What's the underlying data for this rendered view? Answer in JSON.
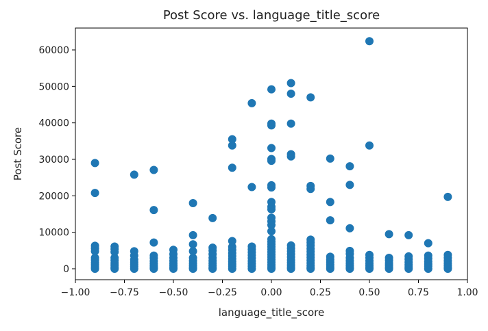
{
  "chart_data": {
    "type": "scatter",
    "title": "Post Score vs. language_title_score",
    "xlabel": "language_title_score",
    "ylabel": "Post Score",
    "xlim": [
      -1.0,
      1.0
    ],
    "ylim": [
      -3000,
      66000
    ],
    "xticks": [
      -1.0,
      -0.75,
      -0.5,
      -0.25,
      0.0,
      0.25,
      0.5,
      0.75,
      1.0
    ],
    "xtick_labels": [
      "−1.00",
      "−0.75",
      "−0.50",
      "−0.25",
      "0.00",
      "0.25",
      "0.50",
      "0.75",
      "1.00"
    ],
    "yticks": [
      0,
      10000,
      20000,
      30000,
      40000,
      50000,
      60000
    ],
    "ytick_labels": [
      "0",
      "10000",
      "20000",
      "30000",
      "40000",
      "50000",
      "60000"
    ],
    "grid": false,
    "legend": false,
    "marker_color": "#1f77b4",
    "series": [
      {
        "points": [
          {
            "x": -0.9,
            "y": 29000
          },
          {
            "x": -0.9,
            "y": 20800
          },
          {
            "x": -0.9,
            "y": 6300
          },
          {
            "x": -0.9,
            "y": 5600
          },
          {
            "x": -0.9,
            "y": 4800
          },
          {
            "x": -0.9,
            "y": 3000
          },
          {
            "x": -0.9,
            "y": 2400
          },
          {
            "x": -0.9,
            "y": 1700
          },
          {
            "x": -0.9,
            "y": 1100
          },
          {
            "x": -0.9,
            "y": 500
          },
          {
            "x": -0.9,
            "y": 0
          },
          {
            "x": -0.8,
            "y": 6100
          },
          {
            "x": -0.8,
            "y": 5400
          },
          {
            "x": -0.8,
            "y": 4600
          },
          {
            "x": -0.8,
            "y": 3000
          },
          {
            "x": -0.8,
            "y": 2300
          },
          {
            "x": -0.8,
            "y": 1600
          },
          {
            "x": -0.8,
            "y": 1000
          },
          {
            "x": -0.8,
            "y": 400
          },
          {
            "x": -0.8,
            "y": 0
          },
          {
            "x": -0.7,
            "y": 25800
          },
          {
            "x": -0.7,
            "y": 4800
          },
          {
            "x": -0.7,
            "y": 3600
          },
          {
            "x": -0.7,
            "y": 2500
          },
          {
            "x": -0.7,
            "y": 1800
          },
          {
            "x": -0.7,
            "y": 1200
          },
          {
            "x": -0.7,
            "y": 600
          },
          {
            "x": -0.7,
            "y": 0
          },
          {
            "x": -0.6,
            "y": 27100
          },
          {
            "x": -0.6,
            "y": 16100
          },
          {
            "x": -0.6,
            "y": 7200
          },
          {
            "x": -0.6,
            "y": 3600
          },
          {
            "x": -0.6,
            "y": 2900
          },
          {
            "x": -0.6,
            "y": 2100
          },
          {
            "x": -0.6,
            "y": 1400
          },
          {
            "x": -0.6,
            "y": 800
          },
          {
            "x": -0.6,
            "y": 300
          },
          {
            "x": -0.6,
            "y": 0
          },
          {
            "x": -0.5,
            "y": 5200
          },
          {
            "x": -0.5,
            "y": 4000
          },
          {
            "x": -0.5,
            "y": 3000
          },
          {
            "x": -0.5,
            "y": 2200
          },
          {
            "x": -0.5,
            "y": 1500
          },
          {
            "x": -0.5,
            "y": 900
          },
          {
            "x": -0.5,
            "y": 300
          },
          {
            "x": -0.5,
            "y": 0
          },
          {
            "x": -0.4,
            "y": 18000
          },
          {
            "x": -0.4,
            "y": 9200
          },
          {
            "x": -0.4,
            "y": 6700
          },
          {
            "x": -0.4,
            "y": 4800
          },
          {
            "x": -0.4,
            "y": 3000
          },
          {
            "x": -0.4,
            "y": 2200
          },
          {
            "x": -0.4,
            "y": 1500
          },
          {
            "x": -0.4,
            "y": 900
          },
          {
            "x": -0.4,
            "y": 300
          },
          {
            "x": -0.4,
            "y": 0
          },
          {
            "x": -0.3,
            "y": 13900
          },
          {
            "x": -0.3,
            "y": 5800
          },
          {
            "x": -0.3,
            "y": 5000
          },
          {
            "x": -0.3,
            "y": 4000
          },
          {
            "x": -0.3,
            "y": 3000
          },
          {
            "x": -0.3,
            "y": 2200
          },
          {
            "x": -0.3,
            "y": 1500
          },
          {
            "x": -0.3,
            "y": 900
          },
          {
            "x": -0.3,
            "y": 300
          },
          {
            "x": -0.3,
            "y": 0
          },
          {
            "x": -0.2,
            "y": 35500
          },
          {
            "x": -0.2,
            "y": 33800
          },
          {
            "x": -0.2,
            "y": 27700
          },
          {
            "x": -0.2,
            "y": 7600
          },
          {
            "x": -0.2,
            "y": 6000
          },
          {
            "x": -0.2,
            "y": 5200
          },
          {
            "x": -0.2,
            "y": 4300
          },
          {
            "x": -0.2,
            "y": 3500
          },
          {
            "x": -0.2,
            "y": 2700
          },
          {
            "x": -0.2,
            "y": 2000
          },
          {
            "x": -0.2,
            "y": 1300
          },
          {
            "x": -0.2,
            "y": 700
          },
          {
            "x": -0.2,
            "y": 0
          },
          {
            "x": -0.1,
            "y": 45400
          },
          {
            "x": -0.1,
            "y": 22400
          },
          {
            "x": -0.1,
            "y": 6100
          },
          {
            "x": -0.1,
            "y": 5300
          },
          {
            "x": -0.1,
            "y": 4500
          },
          {
            "x": -0.1,
            "y": 3700
          },
          {
            "x": -0.1,
            "y": 2900
          },
          {
            "x": -0.1,
            "y": 2100
          },
          {
            "x": -0.1,
            "y": 1400
          },
          {
            "x": -0.1,
            "y": 700
          },
          {
            "x": -0.1,
            "y": 0
          },
          {
            "x": 0.0,
            "y": 49200
          },
          {
            "x": 0.0,
            "y": 39800
          },
          {
            "x": 0.0,
            "y": 39300
          },
          {
            "x": 0.0,
            "y": 33100
          },
          {
            "x": 0.0,
            "y": 30100
          },
          {
            "x": 0.0,
            "y": 29600
          },
          {
            "x": 0.0,
            "y": 22900
          },
          {
            "x": 0.0,
            "y": 22300
          },
          {
            "x": 0.0,
            "y": 18300
          },
          {
            "x": 0.0,
            "y": 17000
          },
          {
            "x": 0.0,
            "y": 16300
          },
          {
            "x": 0.0,
            "y": 14000
          },
          {
            "x": 0.0,
            "y": 13000
          },
          {
            "x": 0.0,
            "y": 12000
          },
          {
            "x": 0.0,
            "y": 10300
          },
          {
            "x": 0.0,
            "y": 8100
          },
          {
            "x": 0.0,
            "y": 7400
          },
          {
            "x": 0.0,
            "y": 6700
          },
          {
            "x": 0.0,
            "y": 6000
          },
          {
            "x": 0.0,
            "y": 5300
          },
          {
            "x": 0.0,
            "y": 4600
          },
          {
            "x": 0.0,
            "y": 3900
          },
          {
            "x": 0.0,
            "y": 3200
          },
          {
            "x": 0.0,
            "y": 2500
          },
          {
            "x": 0.0,
            "y": 1800
          },
          {
            "x": 0.0,
            "y": 1100
          },
          {
            "x": 0.0,
            "y": 500
          },
          {
            "x": 0.0,
            "y": 0
          },
          {
            "x": 0.1,
            "y": 50900
          },
          {
            "x": 0.1,
            "y": 48000
          },
          {
            "x": 0.1,
            "y": 39800
          },
          {
            "x": 0.1,
            "y": 31400
          },
          {
            "x": 0.1,
            "y": 30800
          },
          {
            "x": 0.1,
            "y": 6400
          },
          {
            "x": 0.1,
            "y": 5600
          },
          {
            "x": 0.1,
            "y": 4800
          },
          {
            "x": 0.1,
            "y": 4000
          },
          {
            "x": 0.1,
            "y": 3200
          },
          {
            "x": 0.1,
            "y": 2400
          },
          {
            "x": 0.1,
            "y": 1700
          },
          {
            "x": 0.1,
            "y": 1000
          },
          {
            "x": 0.1,
            "y": 400
          },
          {
            "x": 0.1,
            "y": 0
          },
          {
            "x": 0.2,
            "y": 47000
          },
          {
            "x": 0.2,
            "y": 22700
          },
          {
            "x": 0.2,
            "y": 21900
          },
          {
            "x": 0.2,
            "y": 8000
          },
          {
            "x": 0.2,
            "y": 7200
          },
          {
            "x": 0.2,
            "y": 6400
          },
          {
            "x": 0.2,
            "y": 5500
          },
          {
            "x": 0.2,
            "y": 4700
          },
          {
            "x": 0.2,
            "y": 3900
          },
          {
            "x": 0.2,
            "y": 3100
          },
          {
            "x": 0.2,
            "y": 2300
          },
          {
            "x": 0.2,
            "y": 1600
          },
          {
            "x": 0.2,
            "y": 900
          },
          {
            "x": 0.2,
            "y": 300
          },
          {
            "x": 0.2,
            "y": 0
          },
          {
            "x": 0.3,
            "y": 30200
          },
          {
            "x": 0.3,
            "y": 18300
          },
          {
            "x": 0.3,
            "y": 13300
          },
          {
            "x": 0.3,
            "y": 3300
          },
          {
            "x": 0.3,
            "y": 2500
          },
          {
            "x": 0.3,
            "y": 1800
          },
          {
            "x": 0.3,
            "y": 1100
          },
          {
            "x": 0.3,
            "y": 500
          },
          {
            "x": 0.3,
            "y": 0
          },
          {
            "x": 0.4,
            "y": 28100
          },
          {
            "x": 0.4,
            "y": 23000
          },
          {
            "x": 0.4,
            "y": 11100
          },
          {
            "x": 0.4,
            "y": 4900
          },
          {
            "x": 0.4,
            "y": 4100
          },
          {
            "x": 0.4,
            "y": 3000
          },
          {
            "x": 0.4,
            "y": 2200
          },
          {
            "x": 0.4,
            "y": 1500
          },
          {
            "x": 0.4,
            "y": 900
          },
          {
            "x": 0.4,
            "y": 300
          },
          {
            "x": 0.4,
            "y": 0
          },
          {
            "x": 0.5,
            "y": 62400
          },
          {
            "x": 0.5,
            "y": 33800
          },
          {
            "x": 0.5,
            "y": 3800
          },
          {
            "x": 0.5,
            "y": 3000
          },
          {
            "x": 0.5,
            "y": 2200
          },
          {
            "x": 0.5,
            "y": 1500
          },
          {
            "x": 0.5,
            "y": 900
          },
          {
            "x": 0.5,
            "y": 300
          },
          {
            "x": 0.5,
            "y": 0
          },
          {
            "x": 0.6,
            "y": 9500
          },
          {
            "x": 0.6,
            "y": 3000
          },
          {
            "x": 0.6,
            "y": 2300
          },
          {
            "x": 0.6,
            "y": 1600
          },
          {
            "x": 0.6,
            "y": 1000
          },
          {
            "x": 0.6,
            "y": 400
          },
          {
            "x": 0.6,
            "y": 0
          },
          {
            "x": 0.7,
            "y": 9200
          },
          {
            "x": 0.7,
            "y": 3400
          },
          {
            "x": 0.7,
            "y": 2600
          },
          {
            "x": 0.7,
            "y": 1800
          },
          {
            "x": 0.7,
            "y": 1100
          },
          {
            "x": 0.7,
            "y": 500
          },
          {
            "x": 0.7,
            "y": 0
          },
          {
            "x": 0.8,
            "y": 7000
          },
          {
            "x": 0.8,
            "y": 3600
          },
          {
            "x": 0.8,
            "y": 2800
          },
          {
            "x": 0.8,
            "y": 2000
          },
          {
            "x": 0.8,
            "y": 1300
          },
          {
            "x": 0.8,
            "y": 700
          },
          {
            "x": 0.8,
            "y": 0
          },
          {
            "x": 0.9,
            "y": 19700
          },
          {
            "x": 0.9,
            "y": 3800
          },
          {
            "x": 0.9,
            "y": 3000
          },
          {
            "x": 0.9,
            "y": 2200
          },
          {
            "x": 0.9,
            "y": 1500
          },
          {
            "x": 0.9,
            "y": 900
          },
          {
            "x": 0.9,
            "y": 300
          },
          {
            "x": 0.9,
            "y": 0
          }
        ]
      }
    ]
  }
}
